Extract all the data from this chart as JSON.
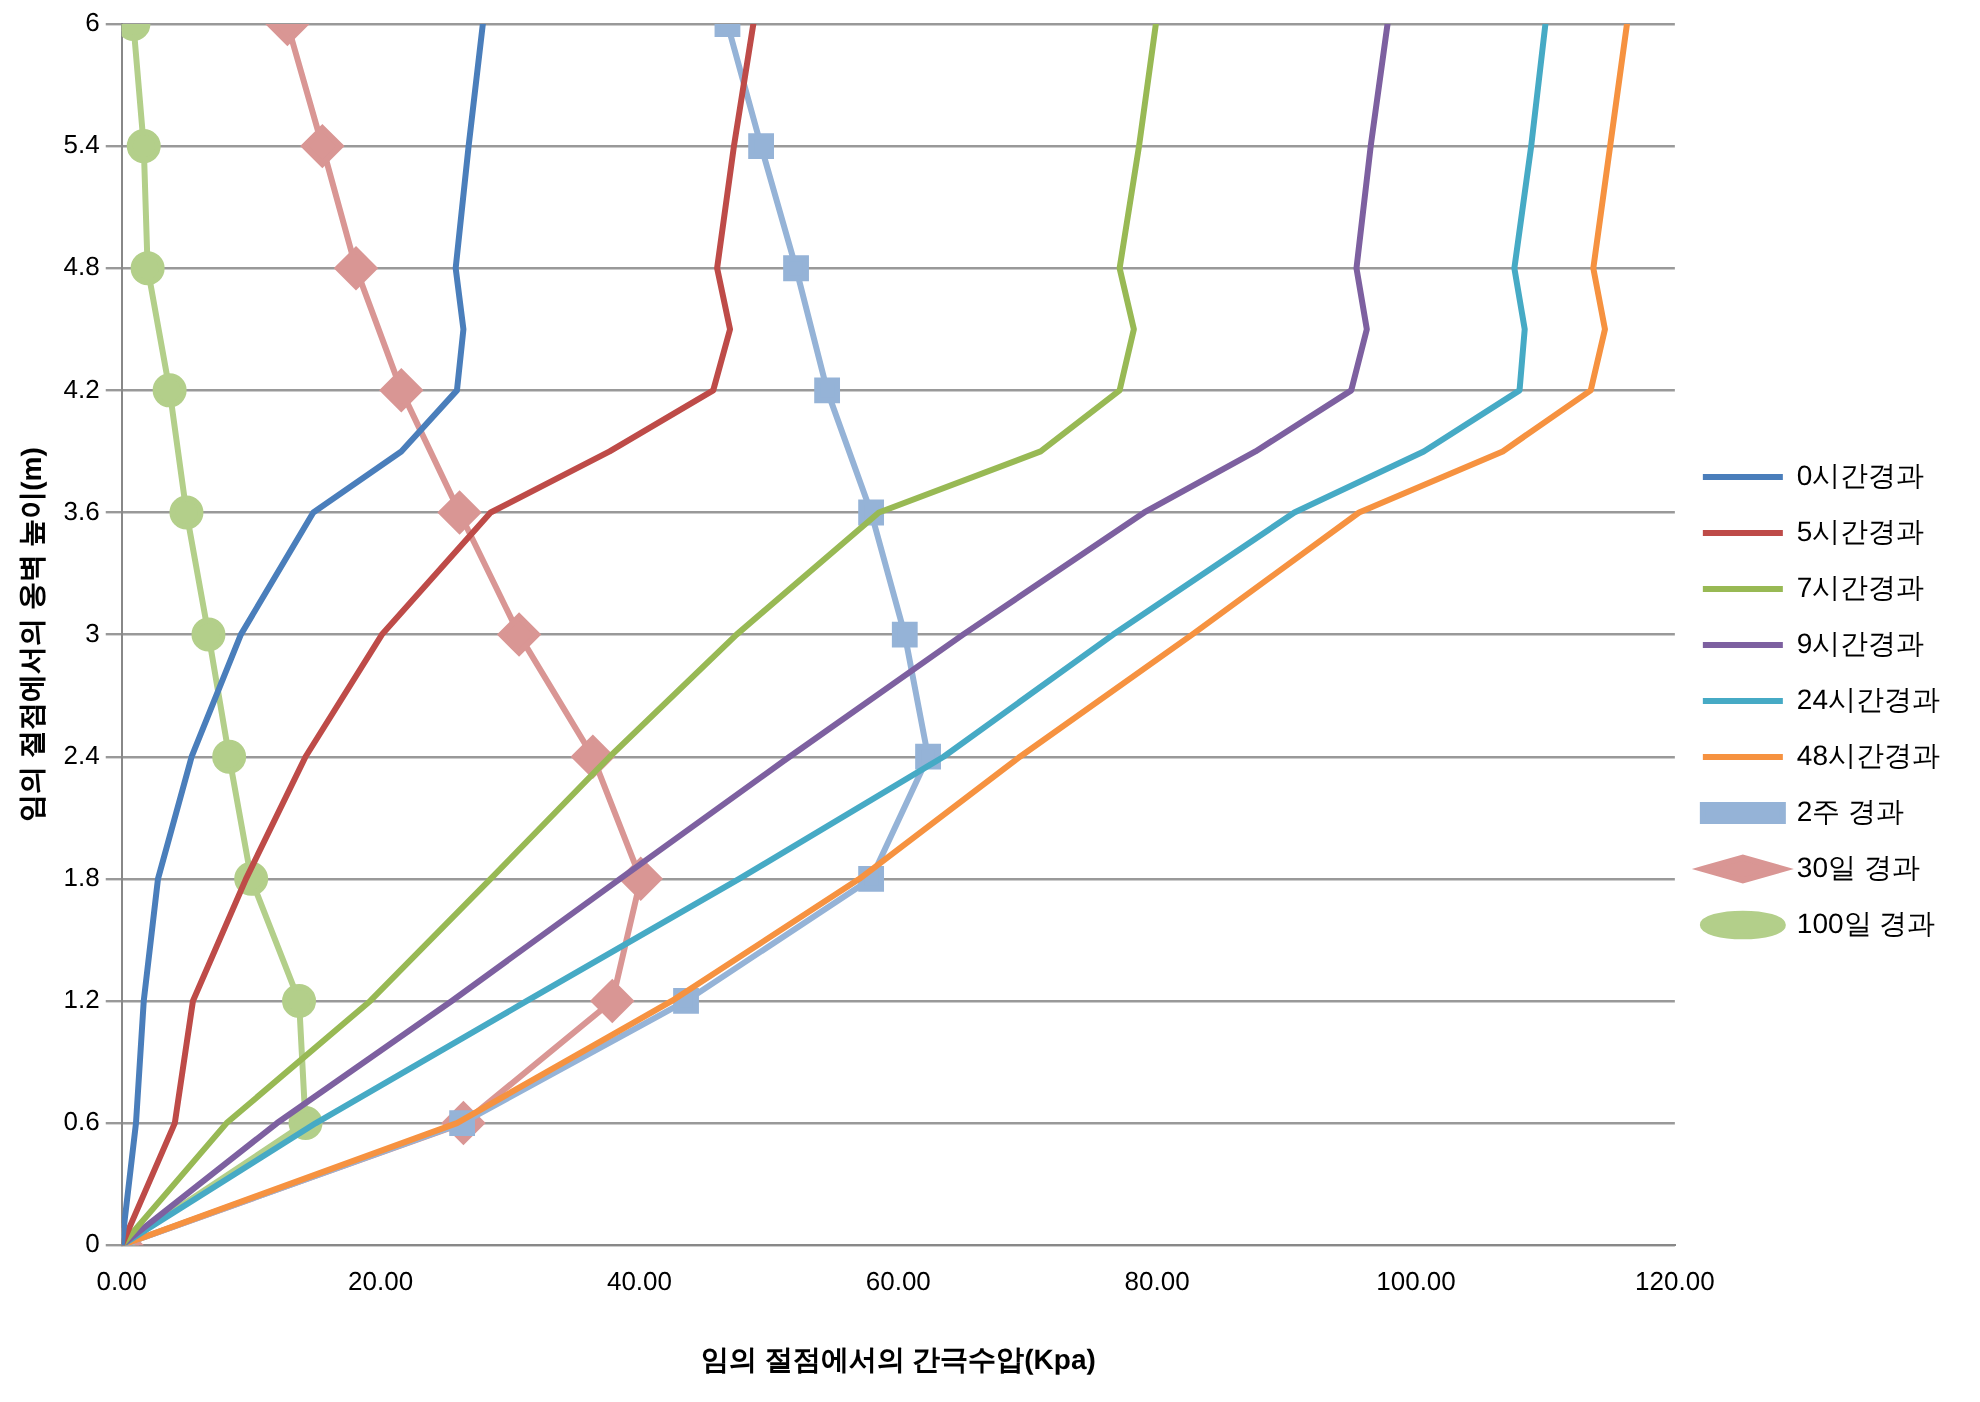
{
  "chart_data": {
    "type": "line",
    "xlabel": "임의 절점에서의 간극수압(Kpa)",
    "ylabel": "임의 절점에서의 옹벽 높이(m)",
    "xlim": [
      0,
      120
    ],
    "xticks": [
      {
        "value": 0,
        "label": "0.00"
      },
      {
        "value": 20,
        "label": "20.00"
      },
      {
        "value": 40,
        "label": "40.00"
      },
      {
        "value": 60,
        "label": "60.00"
      },
      {
        "value": 80,
        "label": "80.00"
      },
      {
        "value": 100,
        "label": "100.00"
      },
      {
        "value": 120,
        "label": "120.00"
      }
    ],
    "ylim": [
      0,
      6
    ],
    "yticks": [
      0,
      0.6,
      1.2,
      1.8,
      2.4,
      3,
      3.6,
      4.2,
      4.8,
      5.4,
      6
    ],
    "grid": "y",
    "legend": "right",
    "series": [
      {
        "name": "0시간경과",
        "color": "#4a7ebb",
        "marker": "none",
        "x": [
          0,
          1.1,
          1.7,
          2.8,
          5.4,
          9.2,
          14.8,
          21.6,
          25.9,
          26.4,
          25.8,
          26.8,
          27.9
        ],
        "values": [
          0,
          0.6,
          1.2,
          1.8,
          2.4,
          3,
          3.6,
          3.9,
          4.2,
          4.5,
          4.8,
          5.4,
          6
        ]
      },
      {
        "name": "5시간경과",
        "color": "#be4b48",
        "marker": "none",
        "x": [
          0,
          4.1,
          5.5,
          9.6,
          14.2,
          20.1,
          28.5,
          37.7,
          45.7,
          47,
          46,
          47.3,
          48.8
        ],
        "values": [
          0,
          0.6,
          1.2,
          1.8,
          2.4,
          3,
          3.6,
          3.9,
          4.2,
          4.5,
          4.8,
          5.4,
          6
        ]
      },
      {
        "name": "7시간경과",
        "color": "#98b954",
        "marker": "none",
        "x": [
          0,
          8.1,
          19.2,
          28.5,
          37.7,
          47.5,
          58.5,
          71,
          77.1,
          78.2,
          77.1,
          78.6,
          79.9
        ],
        "values": [
          0,
          0.6,
          1.2,
          1.8,
          2.4,
          3,
          3.6,
          3.9,
          4.2,
          4.5,
          4.8,
          5.4,
          6
        ]
      },
      {
        "name": "9시간경과",
        "color": "#7d60a0",
        "marker": "none",
        "x": [
          0,
          12,
          25.5,
          38.5,
          51.6,
          65,
          79,
          87.6,
          95,
          96.2,
          95.4,
          96.5,
          97.8
        ],
        "values": [
          0,
          0.6,
          1.2,
          1.8,
          2.4,
          3,
          3.6,
          3.9,
          4.2,
          4.5,
          4.8,
          5.4,
          6
        ]
      },
      {
        "name": "24시간경과",
        "color": "#46aac5",
        "marker": "none",
        "x": [
          0,
          15,
          31.3,
          47.7,
          63.5,
          76.6,
          90.6,
          100.6,
          108,
          108.4,
          107.6,
          108.9,
          110
        ],
        "values": [
          0,
          0.6,
          1.2,
          1.8,
          2.4,
          3,
          3.6,
          3.9,
          4.2,
          4.5,
          4.8,
          5.4,
          6
        ]
      },
      {
        "name": "48시간경과",
        "color": "#f69240",
        "marker": "none",
        "x": [
          0,
          25.9,
          42.5,
          57,
          69.4,
          82.7,
          95.6,
          106.7,
          113.5,
          114.6,
          113.7,
          115,
          116.3
        ],
        "values": [
          0,
          0.6,
          1.2,
          1.8,
          2.4,
          3,
          3.6,
          3.9,
          4.2,
          4.5,
          4.8,
          5.4,
          6
        ]
      },
      {
        "name": "2주 경과",
        "color": "#95b3d7",
        "marker": "square",
        "x": [
          0,
          26.3,
          43.6,
          57.9,
          62.3,
          60.5,
          57.9,
          54.5,
          52.1,
          49.4,
          46.8
        ],
        "values": [
          0,
          0.6,
          1.2,
          1.8,
          2.4,
          3,
          3.6,
          4.2,
          4.8,
          5.4,
          6
        ]
      },
      {
        "name": "30일 경과",
        "color": "#d99694",
        "marker": "diamond",
        "x": [
          0,
          26.4,
          37.9,
          40.1,
          36.4,
          30.7,
          26.1,
          21.6,
          18.1,
          15.5,
          12.8
        ],
        "values": [
          0,
          0.6,
          1.2,
          1.8,
          2.4,
          3,
          3.6,
          4.2,
          4.8,
          5.4,
          6
        ]
      },
      {
        "name": "100일 경과",
        "color": "#b3cf8a",
        "marker": "circle",
        "x": [
          0,
          14.2,
          13.7,
          10,
          8.3,
          6.7,
          5,
          3.7,
          2,
          1.7,
          0.9
        ],
        "values": [
          0,
          0.6,
          1.2,
          1.8,
          2.4,
          3,
          3.6,
          4.2,
          4.8,
          5.4,
          6
        ]
      }
    ]
  }
}
